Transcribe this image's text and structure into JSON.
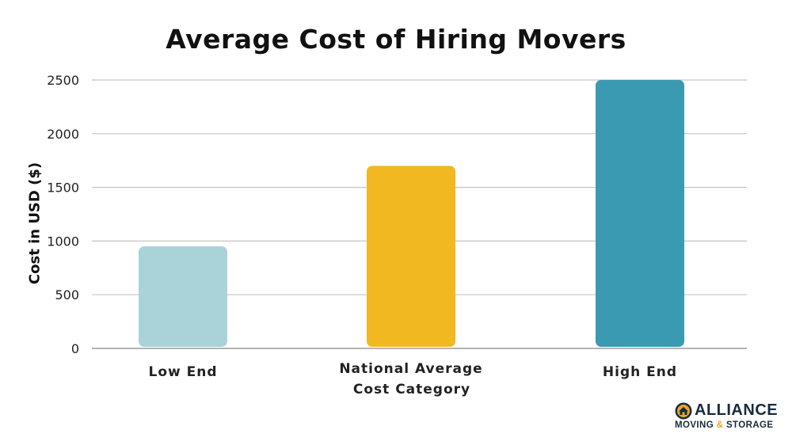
{
  "chart_data": {
    "type": "bar",
    "title": "Average Cost of Hiring Movers",
    "xlabel": "Cost Category",
    "ylabel": "Cost in USD ($)",
    "categories": [
      "Low End",
      "National Average",
      "High End"
    ],
    "values": [
      950,
      1700,
      2500
    ],
    "colors": [
      "#aad3d9",
      "#f1b821",
      "#3a9ab2"
    ],
    "ylim": [
      0,
      2500
    ],
    "yticks": [
      "0",
      "500",
      "1000",
      "1500",
      "2000",
      "2500"
    ],
    "grid": true
  },
  "logo": {
    "brand": "ALLIANCE",
    "tagline_left": "MOVING",
    "tagline_amp": "&",
    "tagline_right": "STORAGE"
  }
}
